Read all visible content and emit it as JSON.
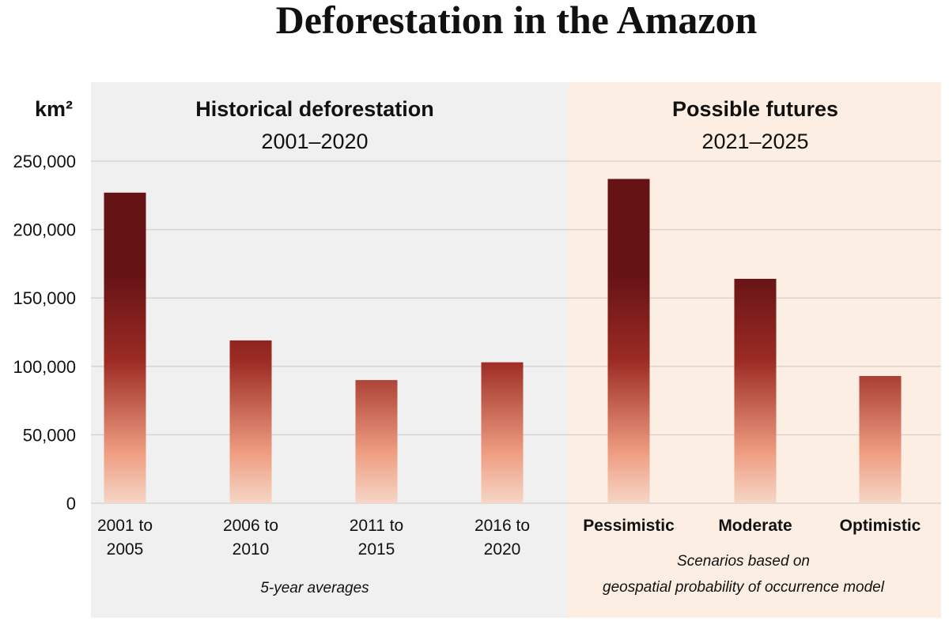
{
  "chart_data": {
    "type": "bar",
    "title": "Deforestation in the Amazon",
    "ylabel": "km²",
    "ylim": [
      0,
      250000
    ],
    "yticks": [
      "0",
      "50,000",
      "100,000",
      "150,000",
      "200,000",
      "250,000"
    ],
    "grid": true,
    "panels": [
      {
        "title": "Historical deforestation",
        "subtitle": "2001–2020",
        "note": "5-year averages",
        "background": "#f0f0f0",
        "categories": [
          [
            "2001 to",
            "2005"
          ],
          [
            "2006 to",
            "2010"
          ],
          [
            "2011 to",
            "2015"
          ],
          [
            "2016 to",
            "2020"
          ]
        ],
        "values": [
          227000,
          119000,
          90000,
          103000
        ]
      },
      {
        "title": "Possible futures",
        "subtitle": "2021–2025",
        "note": [
          "Scenarios based on",
          "geospatial probability of occurrence model"
        ],
        "background": "#fdeee3",
        "categories": [
          [
            "Pessimistic"
          ],
          [
            "Moderate"
          ],
          [
            "Optimistic"
          ]
        ],
        "values": [
          237000,
          164000,
          93000
        ]
      }
    ],
    "colors": {
      "bar_top": "#661316",
      "bar_mid": "#9b2a23",
      "bar_low": "#ee9c80",
      "bar_base": "#f6d6c6",
      "grid": "#d9d4d0"
    }
  }
}
